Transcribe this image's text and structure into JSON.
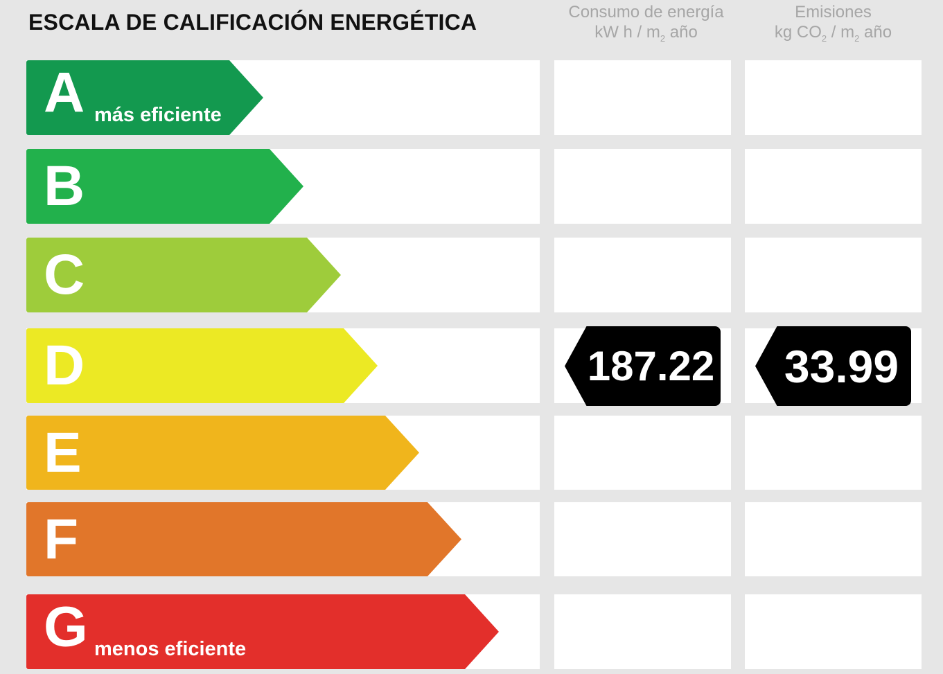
{
  "title": "ESCALA DE CALIFICACIÓN ENERGÉTICA",
  "columns": {
    "energy": {
      "line1": "Consumo de energía",
      "unit_a": "kW h / m",
      "unit_sub": "2",
      "unit_b": " año"
    },
    "emissions": {
      "line1": "Emisiones",
      "unit_a": "kg CO",
      "unit_sub1": "2",
      "unit_mid": " / m",
      "unit_sub2": "2",
      "unit_b": " año"
    }
  },
  "ratings": [
    {
      "letter": "A",
      "sublabel": "más eficiente",
      "color": "#13994f"
    },
    {
      "letter": "B",
      "sublabel": "",
      "color": "#22b14c"
    },
    {
      "letter": "C",
      "sublabel": "",
      "color": "#9ecc3b"
    },
    {
      "letter": "D",
      "sublabel": "",
      "color": "#ece924"
    },
    {
      "letter": "E",
      "sublabel": "",
      "color": "#f0b51c"
    },
    {
      "letter": "F",
      "sublabel": "",
      "color": "#e1762a"
    },
    {
      "letter": "G",
      "sublabel": "menos eficiente",
      "color": "#e32f2b"
    }
  ],
  "current_rating": "D",
  "energy_consumption": "187.22",
  "emissions_value": "33.99"
}
